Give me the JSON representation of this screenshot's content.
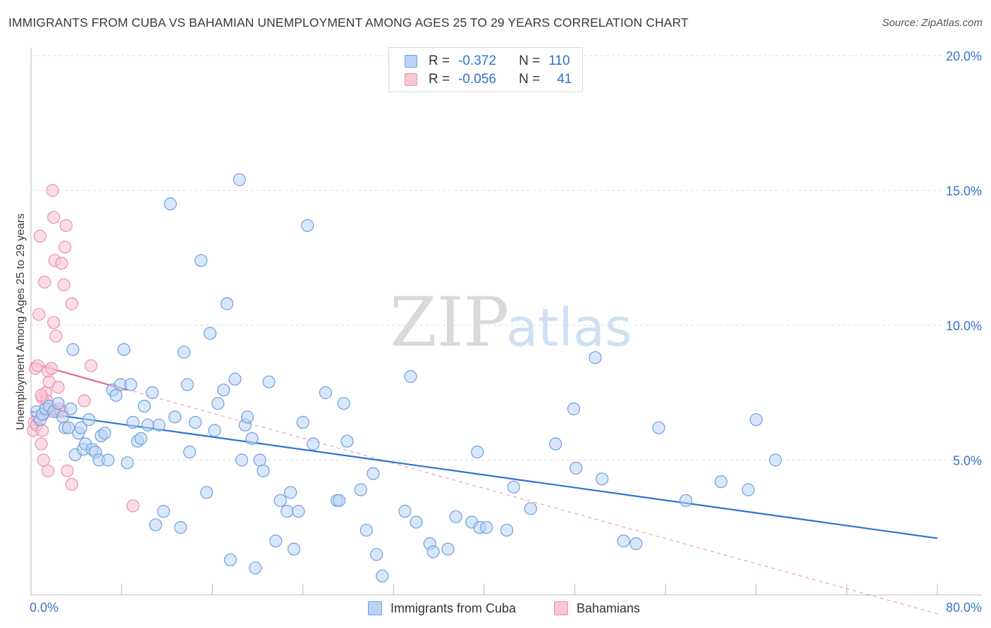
{
  "title": "IMMIGRANTS FROM CUBA VS BAHAMIAN UNEMPLOYMENT AMONG AGES 25 TO 29 YEARS CORRELATION CHART",
  "source": "Source: ZipAtlas.com",
  "watermark": {
    "zip": "ZIP",
    "atlas": "atlas"
  },
  "stats_legend": [
    {
      "r_label": "R =",
      "r_value": "-0.372",
      "n_label": "N =",
      "n_value": "110"
    },
    {
      "r_label": "R =",
      "r_value": "-0.056",
      "n_label": "N =",
      "n_value": "41"
    }
  ],
  "colors": {
    "cuba_fill": "#b9d3f5",
    "cuba_stroke": "#6f9fdf",
    "cuba_line": "#2f73d4",
    "bahamas_fill": "#f8c6d5",
    "bahamas_stroke": "#eb8fae",
    "bahamas_line": "#e5678f",
    "axis_text": "#3b73c6",
    "grid": "#dedede"
  },
  "chart_data": {
    "type": "scatter",
    "title": "IMMIGRANTS FROM CUBA VS BAHAMIAN UNEMPLOYMENT AMONG AGES 25 TO 29 YEARS CORRELATION CHART",
    "xlabel": "",
    "ylabel": "Unemployment Among Ages 25 to 29 years",
    "xlim": [
      0,
      80
    ],
    "ylim": [
      0,
      20
    ],
    "x_tick_labels": [
      "0.0%",
      "80.0%"
    ],
    "y_ticks": [
      5,
      10,
      15,
      20
    ],
    "y_tick_labels": [
      "5.0%",
      "10.0%",
      "15.0%",
      "20.0%"
    ],
    "grid": true,
    "legend": [
      "Immigrants from Cuba",
      "Bahamians"
    ],
    "series": [
      {
        "name": "Immigrants from Cuba",
        "r": -0.372,
        "n": 110,
        "trend": {
          "x1": 0,
          "y1": 6.8,
          "x2": 80,
          "y2": 2.1
        },
        "points": [
          [
            0.5,
            6.8
          ],
          [
            0.8,
            6.5
          ],
          [
            1.0,
            6.7
          ],
          [
            1.3,
            6.9
          ],
          [
            1.6,
            7.0
          ],
          [
            2.0,
            6.8
          ],
          [
            2.4,
            7.1
          ],
          [
            2.8,
            6.6
          ],
          [
            3.0,
            6.2
          ],
          [
            3.3,
            6.2
          ],
          [
            3.5,
            6.9
          ],
          [
            3.7,
            9.1
          ],
          [
            3.9,
            5.2
          ],
          [
            4.2,
            6.0
          ],
          [
            4.4,
            6.2
          ],
          [
            4.6,
            5.4
          ],
          [
            4.8,
            5.6
          ],
          [
            5.1,
            6.5
          ],
          [
            5.4,
            5.4
          ],
          [
            5.7,
            5.3
          ],
          [
            6.0,
            5.0
          ],
          [
            6.2,
            5.9
          ],
          [
            6.5,
            6.0
          ],
          [
            6.8,
            5.0
          ],
          [
            7.2,
            7.6
          ],
          [
            7.5,
            7.4
          ],
          [
            7.9,
            7.8
          ],
          [
            8.2,
            9.1
          ],
          [
            8.5,
            4.9
          ],
          [
            8.8,
            7.8
          ],
          [
            9.0,
            6.4
          ],
          [
            9.4,
            5.7
          ],
          [
            9.7,
            5.8
          ],
          [
            10.0,
            7.0
          ],
          [
            10.3,
            6.3
          ],
          [
            10.7,
            7.5
          ],
          [
            11.0,
            2.6
          ],
          [
            11.3,
            6.3
          ],
          [
            11.7,
            3.1
          ],
          [
            12.3,
            14.5
          ],
          [
            12.7,
            6.6
          ],
          [
            13.2,
            2.5
          ],
          [
            13.5,
            9.0
          ],
          [
            13.8,
            7.8
          ],
          [
            14.0,
            5.3
          ],
          [
            14.5,
            6.4
          ],
          [
            15.0,
            12.4
          ],
          [
            15.5,
            3.8
          ],
          [
            15.8,
            9.7
          ],
          [
            16.2,
            6.1
          ],
          [
            16.5,
            7.1
          ],
          [
            17.0,
            7.6
          ],
          [
            17.3,
            10.8
          ],
          [
            17.6,
            1.3
          ],
          [
            18.0,
            8.0
          ],
          [
            18.4,
            15.4
          ],
          [
            18.6,
            5.0
          ],
          [
            18.9,
            6.3
          ],
          [
            19.1,
            6.6
          ],
          [
            19.5,
            5.8
          ],
          [
            19.8,
            1.0
          ],
          [
            20.2,
            5.0
          ],
          [
            20.5,
            4.6
          ],
          [
            21.0,
            7.9
          ],
          [
            21.6,
            2.0
          ],
          [
            22.0,
            3.5
          ],
          [
            22.6,
            3.1
          ],
          [
            22.9,
            3.8
          ],
          [
            23.2,
            1.7
          ],
          [
            23.6,
            3.1
          ],
          [
            24.0,
            6.4
          ],
          [
            24.4,
            13.7
          ],
          [
            24.9,
            5.6
          ],
          [
            26.0,
            7.5
          ],
          [
            27.0,
            3.5
          ],
          [
            27.2,
            3.5
          ],
          [
            27.6,
            7.1
          ],
          [
            27.9,
            5.7
          ],
          [
            29.1,
            3.9
          ],
          [
            29.6,
            2.4
          ],
          [
            30.2,
            4.5
          ],
          [
            30.5,
            1.5
          ],
          [
            31.0,
            0.7
          ],
          [
            33.0,
            3.1
          ],
          [
            33.5,
            8.1
          ],
          [
            34.0,
            2.7
          ],
          [
            35.2,
            1.9
          ],
          [
            35.5,
            1.6
          ],
          [
            36.8,
            1.7
          ],
          [
            37.5,
            2.9
          ],
          [
            38.9,
            2.7
          ],
          [
            39.4,
            5.3
          ],
          [
            39.6,
            2.5
          ],
          [
            40.2,
            2.5
          ],
          [
            42.0,
            2.4
          ],
          [
            42.6,
            4.0
          ],
          [
            44.1,
            3.2
          ],
          [
            46.3,
            5.6
          ],
          [
            47.9,
            6.9
          ],
          [
            48.1,
            4.7
          ],
          [
            49.8,
            8.8
          ],
          [
            50.4,
            4.3
          ],
          [
            52.3,
            2.0
          ],
          [
            53.4,
            1.9
          ],
          [
            55.4,
            6.2
          ],
          [
            57.8,
            3.5
          ],
          [
            60.9,
            4.2
          ],
          [
            63.3,
            3.9
          ],
          [
            64.0,
            6.5
          ],
          [
            65.7,
            5.0
          ]
        ]
      },
      {
        "name": "Bahamians",
        "r": -0.056,
        "n": 41,
        "trend": {
          "x1": 0,
          "y1": 8.6,
          "x2": 8.5,
          "y2": 7.6
        },
        "dashed_extension": {
          "x1": 0,
          "y1": 8.6,
          "x2": 80,
          "y2": -0.7
        },
        "points": [
          [
            0.2,
            6.1
          ],
          [
            0.3,
            6.4
          ],
          [
            0.4,
            8.4
          ],
          [
            0.5,
            6.3
          ],
          [
            0.6,
            8.5
          ],
          [
            0.7,
            10.4
          ],
          [
            0.8,
            13.3
          ],
          [
            0.9,
            5.6
          ],
          [
            1.0,
            7.3
          ],
          [
            1.0,
            6.1
          ],
          [
            1.1,
            6.7
          ],
          [
            1.2,
            11.6
          ],
          [
            1.3,
            7.5
          ],
          [
            1.4,
            7.2
          ],
          [
            1.5,
            8.3
          ],
          [
            1.5,
            4.6
          ],
          [
            1.6,
            7.9
          ],
          [
            1.7,
            6.9
          ],
          [
            1.8,
            8.4
          ],
          [
            1.9,
            15.0
          ],
          [
            2.0,
            10.1
          ],
          [
            2.0,
            14.0
          ],
          [
            2.1,
            12.4
          ],
          [
            2.2,
            9.6
          ],
          [
            2.3,
            6.8
          ],
          [
            2.4,
            7.7
          ],
          [
            2.5,
            6.9
          ],
          [
            2.7,
            12.3
          ],
          [
            2.9,
            11.5
          ],
          [
            3.0,
            12.9
          ],
          [
            3.1,
            13.7
          ],
          [
            3.2,
            4.6
          ],
          [
            3.6,
            4.1
          ],
          [
            3.6,
            10.8
          ],
          [
            4.7,
            7.2
          ],
          [
            5.3,
            8.5
          ],
          [
            9.0,
            3.3
          ],
          [
            0.9,
            7.4
          ],
          [
            1.1,
            5.0
          ],
          [
            2.7,
            6.8
          ],
          [
            0.6,
            6.6
          ]
        ]
      }
    ]
  }
}
